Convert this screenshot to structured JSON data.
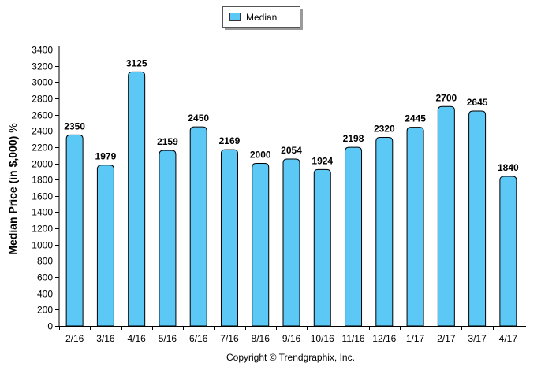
{
  "chart_data": {
    "type": "bar",
    "categories": [
      "2/16",
      "3/16",
      "4/16",
      "5/16",
      "6/16",
      "7/16",
      "8/16",
      "9/16",
      "10/16",
      "11/16",
      "12/16",
      "1/17",
      "2/17",
      "3/17",
      "4/17"
    ],
    "series": [
      {
        "name": "Median",
        "values": [
          2350,
          1979,
          3125,
          2159,
          2450,
          2169,
          2000,
          2054,
          1924,
          2198,
          2320,
          2445,
          2700,
          2645,
          1840
        ],
        "color": "#5bc8f5"
      }
    ],
    "ylabel": "Median Price (in $,000)",
    "ylabel_unit": "%",
    "ylim": [
      0,
      3400
    ],
    "ytick_step": 200,
    "legend_position": "top-center",
    "grid": false
  },
  "footer": {
    "copyright": "Copyright © Trendgraphix, Inc."
  }
}
